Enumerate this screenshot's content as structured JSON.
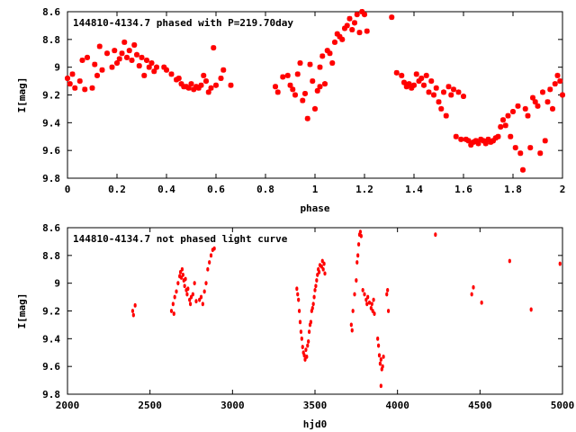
{
  "chart_data": [
    {
      "type": "scatter",
      "title": "144810-4134.7 phased with P=219.70day",
      "xlabel": "phase",
      "ylabel": "I[mag]",
      "xlim": [
        0,
        2
      ],
      "ylim": [
        8.6,
        9.8
      ],
      "y_inverted": true,
      "xticks": [
        "0",
        "0.2",
        "0.4",
        "0.6",
        "0.8",
        "1",
        "1.2",
        "1.4",
        "1.6",
        "1.8",
        "2"
      ],
      "xtick_values": [
        0,
        0.2,
        0.4,
        0.6,
        0.8,
        1.0,
        1.2,
        1.4,
        1.6,
        1.8,
        2.0
      ],
      "yticks": [
        "8.6",
        "8.8",
        "9",
        "9.2",
        "9.4",
        "9.6",
        "9.8"
      ],
      "ytick_values": [
        8.6,
        8.8,
        9.0,
        9.2,
        9.4,
        9.6,
        9.8
      ],
      "grid": false,
      "marker": "star",
      "color": "#ff0000",
      "points": [
        [
          0.0,
          9.08
        ],
        [
          0.01,
          9.12
        ],
        [
          0.02,
          9.05
        ],
        [
          0.03,
          9.15
        ],
        [
          0.05,
          9.1
        ],
        [
          0.06,
          8.95
        ],
        [
          0.07,
          9.16
        ],
        [
          0.08,
          8.93
        ],
        [
          0.1,
          9.15
        ],
        [
          0.11,
          8.98
        ],
        [
          0.12,
          9.06
        ],
        [
          0.13,
          8.85
        ],
        [
          0.14,
          9.02
        ],
        [
          0.16,
          8.9
        ],
        [
          0.18,
          9.0
        ],
        [
          0.19,
          8.88
        ],
        [
          0.2,
          8.97
        ],
        [
          0.21,
          8.94
        ],
        [
          0.22,
          8.9
        ],
        [
          0.23,
          8.82
        ],
        [
          0.24,
          8.93
        ],
        [
          0.25,
          8.88
        ],
        [
          0.26,
          8.95
        ],
        [
          0.27,
          8.84
        ],
        [
          0.28,
          8.91
        ],
        [
          0.29,
          8.99
        ],
        [
          0.3,
          8.93
        ],
        [
          0.31,
          9.06
        ],
        [
          0.32,
          8.95
        ],
        [
          0.33,
          9.0
        ],
        [
          0.34,
          8.97
        ],
        [
          0.35,
          9.03
        ],
        [
          0.36,
          9.0
        ],
        [
          0.39,
          9.0
        ],
        [
          0.4,
          9.02
        ],
        [
          0.42,
          9.05
        ],
        [
          0.44,
          9.09
        ],
        [
          0.45,
          9.08
        ],
        [
          0.46,
          9.12
        ],
        [
          0.47,
          9.14
        ],
        [
          0.48,
          9.14
        ],
        [
          0.49,
          9.15
        ],
        [
          0.5,
          9.12
        ],
        [
          0.51,
          9.16
        ],
        [
          0.52,
          9.14
        ],
        [
          0.53,
          9.15
        ],
        [
          0.54,
          9.13
        ],
        [
          0.55,
          9.06
        ],
        [
          0.56,
          9.1
        ],
        [
          0.57,
          9.18
        ],
        [
          0.58,
          9.15
        ],
        [
          0.59,
          8.86
        ],
        [
          0.6,
          9.13
        ],
        [
          0.62,
          9.08
        ],
        [
          0.63,
          9.02
        ],
        [
          0.66,
          9.13
        ],
        [
          0.84,
          9.14
        ],
        [
          0.85,
          9.18
        ],
        [
          0.87,
          9.07
        ],
        [
          0.89,
          9.06
        ],
        [
          0.9,
          9.13
        ],
        [
          0.91,
          9.16
        ],
        [
          0.92,
          9.2
        ],
        [
          0.93,
          9.05
        ],
        [
          0.94,
          8.97
        ],
        [
          0.95,
          9.24
        ],
        [
          0.96,
          9.19
        ],
        [
          0.97,
          9.37
        ],
        [
          0.98,
          8.98
        ],
        [
          0.99,
          9.1
        ],
        [
          1.0,
          9.3
        ],
        [
          1.01,
          9.17
        ],
        [
          1.02,
          9.14
        ],
        [
          1.02,
          9.0
        ],
        [
          1.03,
          8.92
        ],
        [
          1.04,
          9.12
        ],
        [
          1.05,
          8.88
        ],
        [
          1.06,
          8.9
        ],
        [
          1.07,
          8.97
        ],
        [
          1.08,
          8.82
        ],
        [
          1.09,
          8.76
        ],
        [
          1.1,
          8.78
        ],
        [
          1.11,
          8.8
        ],
        [
          1.12,
          8.72
        ],
        [
          1.13,
          8.7
        ],
        [
          1.14,
          8.65
        ],
        [
          1.15,
          8.73
        ],
        [
          1.16,
          8.68
        ],
        [
          1.17,
          8.62
        ],
        [
          1.18,
          8.75
        ],
        [
          1.19,
          8.6
        ],
        [
          1.2,
          8.62
        ],
        [
          1.21,
          8.74
        ],
        [
          1.31,
          8.64
        ],
        [
          1.33,
          9.04
        ],
        [
          1.35,
          9.06
        ],
        [
          1.36,
          9.11
        ],
        [
          1.37,
          9.14
        ],
        [
          1.38,
          9.12
        ],
        [
          1.39,
          9.15
        ],
        [
          1.4,
          9.13
        ],
        [
          1.41,
          9.05
        ],
        [
          1.42,
          9.1
        ],
        [
          1.43,
          9.08
        ],
        [
          1.44,
          9.13
        ],
        [
          1.45,
          9.06
        ],
        [
          1.46,
          9.18
        ],
        [
          1.47,
          9.1
        ],
        [
          1.48,
          9.2
        ],
        [
          1.49,
          9.15
        ],
        [
          1.5,
          9.25
        ],
        [
          1.51,
          9.3
        ],
        [
          1.52,
          9.18
        ],
        [
          1.53,
          9.35
        ],
        [
          1.54,
          9.14
        ],
        [
          1.55,
          9.2
        ],
        [
          1.56,
          9.16
        ],
        [
          1.57,
          9.5
        ],
        [
          1.58,
          9.18
        ],
        [
          1.59,
          9.52
        ],
        [
          1.6,
          9.21
        ],
        [
          1.61,
          9.52
        ],
        [
          1.62,
          9.53
        ],
        [
          1.63,
          9.56
        ],
        [
          1.64,
          9.54
        ],
        [
          1.65,
          9.53
        ],
        [
          1.66,
          9.55
        ],
        [
          1.67,
          9.52
        ],
        [
          1.68,
          9.53
        ],
        [
          1.69,
          9.55
        ],
        [
          1.7,
          9.52
        ],
        [
          1.71,
          9.54
        ],
        [
          1.72,
          9.53
        ],
        [
          1.73,
          9.51
        ],
        [
          1.74,
          9.5
        ],
        [
          1.75,
          9.43
        ],
        [
          1.76,
          9.38
        ],
        [
          1.77,
          9.42
        ],
        [
          1.78,
          9.35
        ],
        [
          1.79,
          9.5
        ],
        [
          1.8,
          9.32
        ],
        [
          1.81,
          9.58
        ],
        [
          1.82,
          9.28
        ],
        [
          1.83,
          9.62
        ],
        [
          1.84,
          9.74
        ],
        [
          1.85,
          9.3
        ],
        [
          1.86,
          9.35
        ],
        [
          1.87,
          9.58
        ],
        [
          1.88,
          9.22
        ],
        [
          1.89,
          9.25
        ],
        [
          1.9,
          9.28
        ],
        [
          1.91,
          9.62
        ],
        [
          1.92,
          9.18
        ],
        [
          1.93,
          9.53
        ],
        [
          1.94,
          9.25
        ],
        [
          1.95,
          9.16
        ],
        [
          1.96,
          9.3
        ],
        [
          1.97,
          9.12
        ],
        [
          1.98,
          9.06
        ],
        [
          1.99,
          9.1
        ],
        [
          2.0,
          9.2
        ]
      ]
    },
    {
      "type": "scatter",
      "title": "144810-4134.7 not phased light curve",
      "xlabel": "hjd0",
      "ylabel": "I[mag]",
      "xlim": [
        2000,
        5000
      ],
      "ylim": [
        8.6,
        9.8
      ],
      "y_inverted": true,
      "xticks": [
        "2000",
        "2500",
        "3000",
        "3500",
        "4000",
        "4500",
        "5000"
      ],
      "xtick_values": [
        2000,
        2500,
        3000,
        3500,
        4000,
        4500,
        5000
      ],
      "yticks": [
        "8.6",
        "8.8",
        "9",
        "9.2",
        "9.4",
        "9.6",
        "9.8"
      ],
      "ytick_values": [
        8.6,
        8.8,
        9.0,
        9.2,
        9.4,
        9.6,
        9.8
      ],
      "grid": false,
      "marker": "dot",
      "color": "#ff0000",
      "points": [
        [
          2395,
          9.2
        ],
        [
          2400,
          9.23
        ],
        [
          2410,
          9.16
        ],
        [
          2630,
          9.2
        ],
        [
          2640,
          9.15
        ],
        [
          2645,
          9.22
        ],
        [
          2650,
          9.1
        ],
        [
          2660,
          9.06
        ],
        [
          2670,
          9.0
        ],
        [
          2680,
          8.95
        ],
        [
          2685,
          8.92
        ],
        [
          2690,
          8.96
        ],
        [
          2695,
          8.9
        ],
        [
          2700,
          8.94
        ],
        [
          2705,
          8.98
        ],
        [
          2710,
          9.02
        ],
        [
          2715,
          8.97
        ],
        [
          2720,
          9.05
        ],
        [
          2725,
          9.08
        ],
        [
          2730,
          9.04
        ],
        [
          2740,
          9.12
        ],
        [
          2745,
          9.15
        ],
        [
          2750,
          9.1
        ],
        [
          2760,
          9.08
        ],
        [
          2770,
          9.0
        ],
        [
          2780,
          9.13
        ],
        [
          2800,
          9.12
        ],
        [
          2810,
          9.1
        ],
        [
          2820,
          9.15
        ],
        [
          2830,
          9.06
        ],
        [
          2840,
          9.0
        ],
        [
          2850,
          8.9
        ],
        [
          2860,
          8.85
        ],
        [
          2870,
          8.8
        ],
        [
          2880,
          8.76
        ],
        [
          2890,
          8.75
        ],
        [
          3390,
          9.04
        ],
        [
          3395,
          9.08
        ],
        [
          3400,
          9.12
        ],
        [
          3405,
          9.2
        ],
        [
          3410,
          9.28
        ],
        [
          3415,
          9.35
        ],
        [
          3420,
          9.4
        ],
        [
          3425,
          9.46
        ],
        [
          3430,
          9.5
        ],
        [
          3435,
          9.52
        ],
        [
          3440,
          9.55
        ],
        [
          3445,
          9.48
        ],
        [
          3450,
          9.53
        ],
        [
          3455,
          9.45
        ],
        [
          3460,
          9.42
        ],
        [
          3465,
          9.35
        ],
        [
          3470,
          9.3
        ],
        [
          3475,
          9.28
        ],
        [
          3480,
          9.2
        ],
        [
          3485,
          9.18
        ],
        [
          3490,
          9.15
        ],
        [
          3495,
          9.1
        ],
        [
          3500,
          9.05
        ],
        [
          3505,
          9.02
        ],
        [
          3510,
          8.98
        ],
        [
          3515,
          8.94
        ],
        [
          3520,
          8.9
        ],
        [
          3525,
          8.92
        ],
        [
          3530,
          8.87
        ],
        [
          3540,
          8.88
        ],
        [
          3545,
          8.84
        ],
        [
          3550,
          8.9
        ],
        [
          3555,
          8.86
        ],
        [
          3560,
          8.93
        ],
        [
          3720,
          9.3
        ],
        [
          3725,
          9.34
        ],
        [
          3730,
          9.2
        ],
        [
          3740,
          9.08
        ],
        [
          3750,
          8.98
        ],
        [
          3755,
          8.85
        ],
        [
          3760,
          8.8
        ],
        [
          3765,
          8.72
        ],
        [
          3770,
          8.65
        ],
        [
          3775,
          8.63
        ],
        [
          3780,
          8.66
        ],
        [
          3790,
          9.05
        ],
        [
          3800,
          9.08
        ],
        [
          3810,
          9.12
        ],
        [
          3815,
          9.15
        ],
        [
          3820,
          9.1
        ],
        [
          3830,
          9.14
        ],
        [
          3840,
          9.18
        ],
        [
          3845,
          9.15
        ],
        [
          3850,
          9.2
        ],
        [
          3855,
          9.12
        ],
        [
          3860,
          9.22
        ],
        [
          3880,
          9.4
        ],
        [
          3885,
          9.45
        ],
        [
          3890,
          9.52
        ],
        [
          3895,
          9.58
        ],
        [
          3900,
          9.55
        ],
        [
          3905,
          9.62
        ],
        [
          3910,
          9.6
        ],
        [
          3915,
          9.53
        ],
        [
          3900,
          9.74
        ],
        [
          3935,
          9.08
        ],
        [
          3940,
          9.05
        ],
        [
          3945,
          9.2
        ],
        [
          4230,
          8.65
        ],
        [
          4450,
          9.08
        ],
        [
          4460,
          9.03
        ],
        [
          4510,
          9.14
        ],
        [
          4680,
          8.84
        ],
        [
          4810,
          9.19
        ],
        [
          4985,
          8.86
        ]
      ]
    }
  ]
}
